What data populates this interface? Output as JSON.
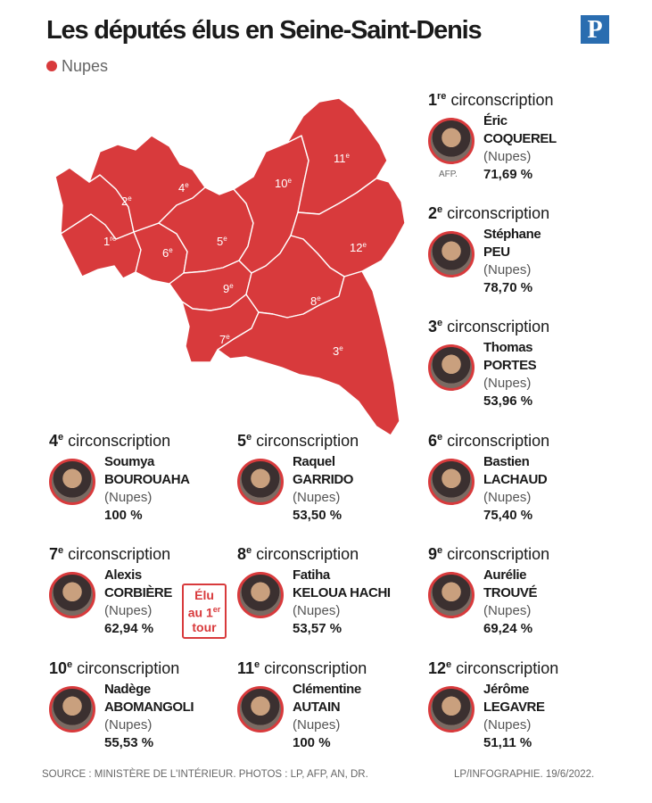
{
  "title": "Les députés élus en Seine-Saint-Denis",
  "logo": "P",
  "legend": {
    "label": "Nupes",
    "color": "#d83a3c"
  },
  "map": {
    "labels": [
      {
        "num": "1",
        "sup": "re"
      },
      {
        "num": "2",
        "sup": "e"
      },
      {
        "num": "3",
        "sup": "e"
      },
      {
        "num": "4",
        "sup": "e"
      },
      {
        "num": "5",
        "sup": "e"
      },
      {
        "num": "6",
        "sup": "e"
      },
      {
        "num": "7",
        "sup": "e"
      },
      {
        "num": "8",
        "sup": "e"
      },
      {
        "num": "9",
        "sup": "e"
      },
      {
        "num": "10",
        "sup": "e"
      },
      {
        "num": "11",
        "sup": "e"
      },
      {
        "num": "12",
        "sup": "e"
      }
    ]
  },
  "circonscriptions": [
    {
      "num": "1",
      "sup": "re",
      "label": "circonscription",
      "first": "Éric",
      "last": "COQUEREL",
      "party": "(Nupes)",
      "pct": "71,69 %",
      "credit": "AFP."
    },
    {
      "num": "2",
      "sup": "e",
      "label": "circonscription",
      "first": "Stéphane",
      "last": "PEU",
      "party": "(Nupes)",
      "pct": "78,70 %"
    },
    {
      "num": "3",
      "sup": "e",
      "label": "circonscription",
      "first": "Thomas",
      "last": "PORTES",
      "party": "(Nupes)",
      "pct": "53,96 %"
    },
    {
      "num": "4",
      "sup": "e",
      "label": "circonscription",
      "first": "Soumya",
      "last": "BOUROUAHA",
      "party": "(Nupes)",
      "pct": "100 %"
    },
    {
      "num": "5",
      "sup": "e",
      "label": "circonscription",
      "first": "Raquel",
      "last": "GARRIDO",
      "party": "(Nupes)",
      "pct": "53,50 %"
    },
    {
      "num": "6",
      "sup": "e",
      "label": "circonscription",
      "first": "Bastien",
      "last": "LACHAUD",
      "party": "(Nupes)",
      "pct": "75,40 %"
    },
    {
      "num": "7",
      "sup": "e",
      "label": "circonscription",
      "first": "Alexis",
      "last": "CORBIÈRE",
      "party": "(Nupes)",
      "pct": "62,94 %"
    },
    {
      "num": "8",
      "sup": "e",
      "label": "circonscription",
      "first": "Fatiha",
      "last": "KELOUA HACHI",
      "party": "(Nupes)",
      "pct": "53,57 %"
    },
    {
      "num": "9",
      "sup": "e",
      "label": "circonscription",
      "first": "Aurélie",
      "last": "TROUVÉ",
      "party": "(Nupes)",
      "pct": "69,24 %"
    },
    {
      "num": "10",
      "sup": "e",
      "label": "circonscription",
      "first": "Nadège",
      "last": "ABOMANGOLI",
      "party": "(Nupes)",
      "pct": "55,53 %"
    },
    {
      "num": "11",
      "sup": "e",
      "label": "circonscription",
      "first": "Clémentine",
      "last": "AUTAIN",
      "party": "(Nupes)",
      "pct": "100 %"
    },
    {
      "num": "12",
      "sup": "e",
      "label": "circonscription",
      "first": "Jérôme",
      "last": "LEGAVRE",
      "party": "(Nupes)",
      "pct": "51,11 %"
    }
  ],
  "badge": {
    "line1": "Élu",
    "line2": "au 1",
    "sup": "er",
    "line3": "tour"
  },
  "footer": {
    "source": "SOURCE : MINISTÈRE DE L'INTÉRIEUR.  PHOTOS : LP, AFP, AN, DR.",
    "credit": "LP/INFOGRAPHIE.  19/6/2022."
  }
}
